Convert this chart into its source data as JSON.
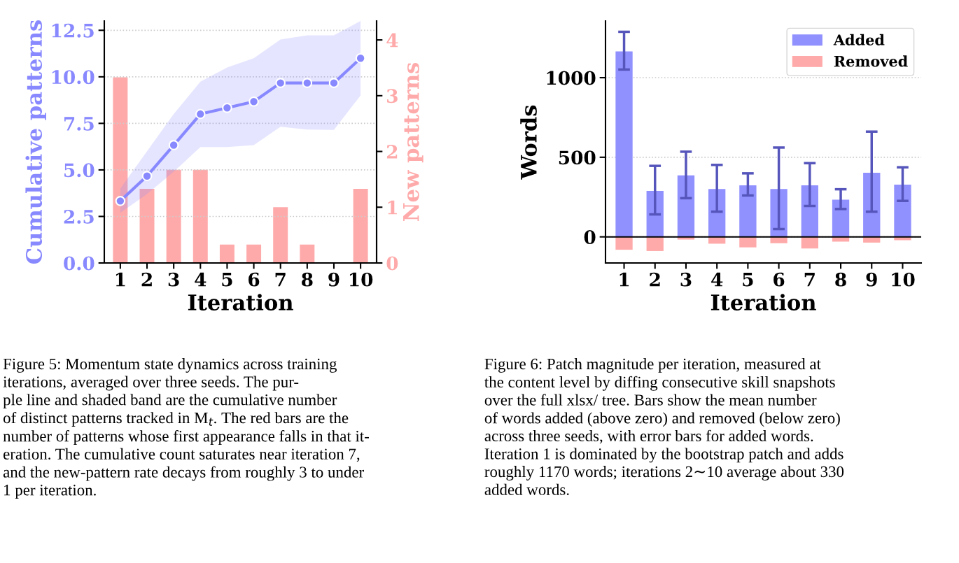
{
  "chart_data": [
    {
      "type": "bar",
      "categories": [
        "1",
        "2",
        "3",
        "4",
        "5",
        "6",
        "7",
        "8",
        "9",
        "10"
      ],
      "xlabel": "Iteration",
      "ylabel": "Cumulative patterns",
      "y2label": "New patterns",
      "ylim": [
        0,
        13.0
      ],
      "yticks": [
        {
          "value": 0,
          "label": "0.0"
        },
        {
          "value": 2.5,
          "label": "2.5"
        },
        {
          "value": 5,
          "label": "5.0"
        },
        {
          "value": 7.5,
          "label": "7.5"
        },
        {
          "value": 10,
          "label": "10.0"
        },
        {
          "value": 12.5,
          "label": "12.5"
        }
      ],
      "y2lim": [
        0,
        4.34
      ],
      "y2ticks": [
        0,
        1,
        2,
        3,
        4
      ],
      "grid": "y",
      "legend": false,
      "marker": "circle",
      "line_style": "solid",
      "series": [
        {
          "type": "line",
          "axis": "y",
          "color": "#8888ff",
          "values": [
            3.33,
            4.67,
            6.33,
            8.0,
            8.33,
            8.67,
            9.67,
            9.67,
            9.67,
            11.0
          ],
          "lower": [
            2.7,
            3.7,
            4.9,
            6.23,
            6.23,
            6.33,
            7.32,
            7.17,
            7.15,
            9.0
          ],
          "upper": [
            4.0,
            6.0,
            8.0,
            9.74,
            10.5,
            11.0,
            12.0,
            12.23,
            12.23,
            13.0
          ]
        },
        {
          "type": "bar",
          "axis": "y2",
          "color": "#ffaaaa",
          "values": [
            3.33,
            1.33,
            1.67,
            1.67,
            0.33,
            0.33,
            1.0,
            0.33,
            0,
            1.33
          ]
        }
      ],
      "annotations": [
        "Figure 5: Momentum state dynamics across training\niterations, averaged over three seeds. The pur-\nple line and shaded band are the cumulative number\nof distinct patterns tracked in M$_{t}$. The red bars are the\nnumber of patterns whose first appearance falls in that it-\neration. The cumulative count saturates near iteration 7,\nand the new-pattern rate decays from roughly 3 to under\n1 per iteration."
      ]
    },
    {
      "type": "bar",
      "categories": [
        "1",
        "2",
        "3",
        "4",
        "5",
        "6",
        "7",
        "8",
        "9",
        "10"
      ],
      "xlabel": "Iteration",
      "ylabel": "Words",
      "ylim": [
        -164,
        1356
      ],
      "yticks": [
        0,
        500,
        1000
      ],
      "grid": "y",
      "legend": "top right",
      "stacked": true,
      "ref_lines": [
        {
          "axis": "y",
          "value": 0,
          "color": "#000000"
        }
      ],
      "series": [
        {
          "name": "Added",
          "color": "#9090ff",
          "values": [
            1165,
            288,
            386,
            301,
            324,
            301,
            324,
            234,
            403,
            328
          ],
          "errors": [
            [
              1051,
              1288
            ],
            [
              141,
              446
            ],
            [
              243,
              535
            ],
            [
              158,
              452
            ],
            [
              260,
              399
            ],
            [
              49,
              561
            ],
            [
              194,
              463
            ],
            [
              175,
              299
            ],
            [
              158,
              661
            ],
            [
              226,
              437
            ]
          ]
        },
        {
          "name": "Removed",
          "color": "#ffaaaa",
          "values": [
            -81,
            -89,
            -17,
            -43,
            -66,
            -40,
            -73,
            -30,
            -36,
            -21
          ]
        }
      ],
      "annotations": [
        "Figure 6: Patch magnitude per iteration, measured at\nthe content level by diffing consecutive skill snapshots\nover the full xlsx/ tree. Bars show the mean number\nof words added (above zero) and removed (below zero)\nacross three seeds, with error bars for added words.\nIteration 1 is dominated by the bootstrap patch and adds\nroughly 1170 words; iterations 2∼10 average about 330\nadded words."
      ]
    }
  ]
}
